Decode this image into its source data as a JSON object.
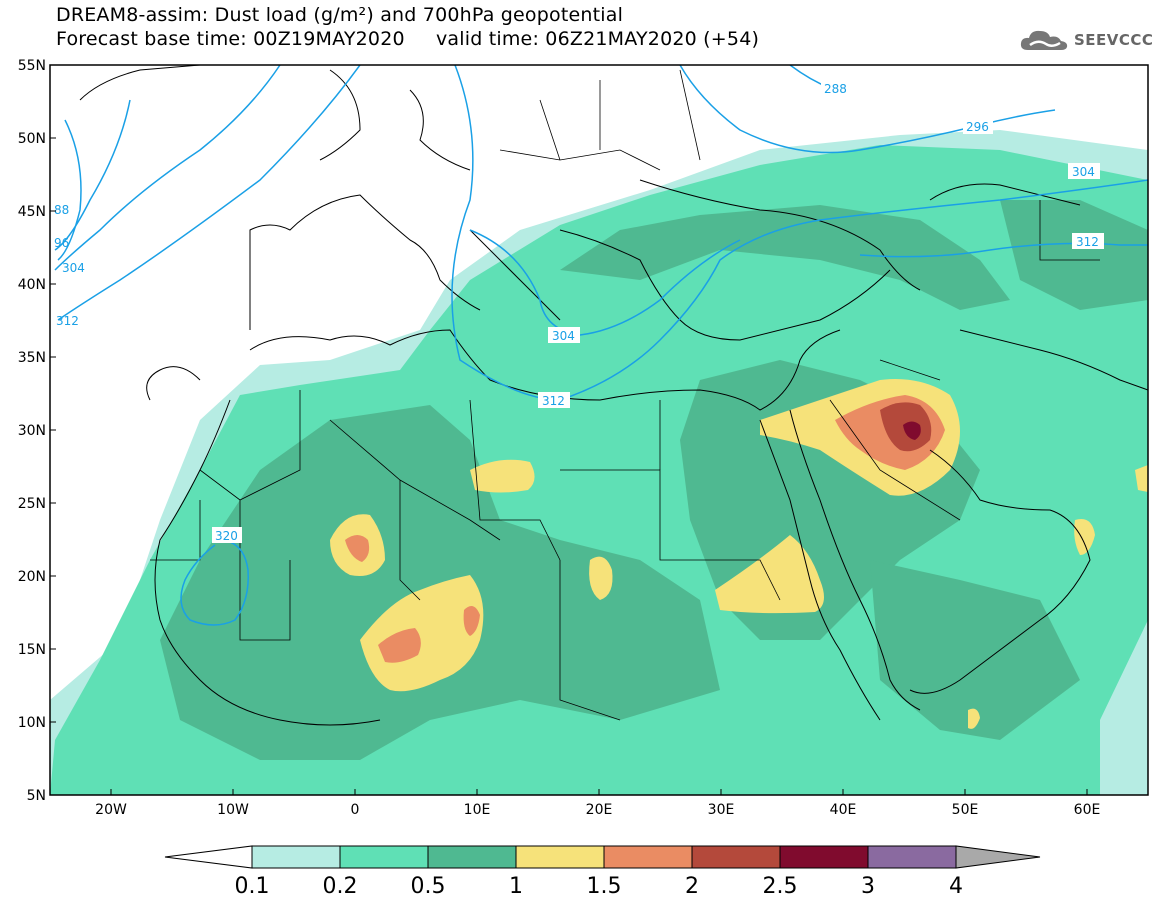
{
  "title": {
    "line1": "DREAM8-assim: Dust load (g/m²) and 700hPa geopotential",
    "line2": "Forecast base time: 00Z19MAY2020     valid time: 06Z21MAY2020 (+54)"
  },
  "logo": {
    "text": "SEEVCCC",
    "icon": "cloud-icon"
  },
  "map": {
    "lon_range": [
      -25,
      65
    ],
    "lat_range": [
      5,
      55
    ],
    "lon_ticks": [
      "20W",
      "10W",
      "0",
      "10E",
      "20E",
      "30E",
      "40E",
      "50E",
      "60E"
    ],
    "lat_ticks": [
      "55N",
      "50N",
      "45N",
      "40N",
      "35N",
      "30N",
      "25N",
      "20N",
      "15N",
      "10N",
      "5N"
    ],
    "contour_color": "#1aa0e6",
    "contour_labels": [
      "288",
      "296",
      "304",
      "312",
      "320",
      "304",
      "312",
      "304",
      "312",
      "96",
      "88"
    ]
  },
  "colorbar": {
    "labels": [
      "0.1",
      "0.2",
      "0.5",
      "1",
      "1.5",
      "2",
      "2.5",
      "3",
      "4"
    ],
    "colors": [
      "#b6ece3",
      "#5fe0b5",
      "#4fb991",
      "#f6e27a",
      "#ea8c63",
      "#b4493b",
      "#800b2e",
      "#8a6aa0"
    ]
  }
}
